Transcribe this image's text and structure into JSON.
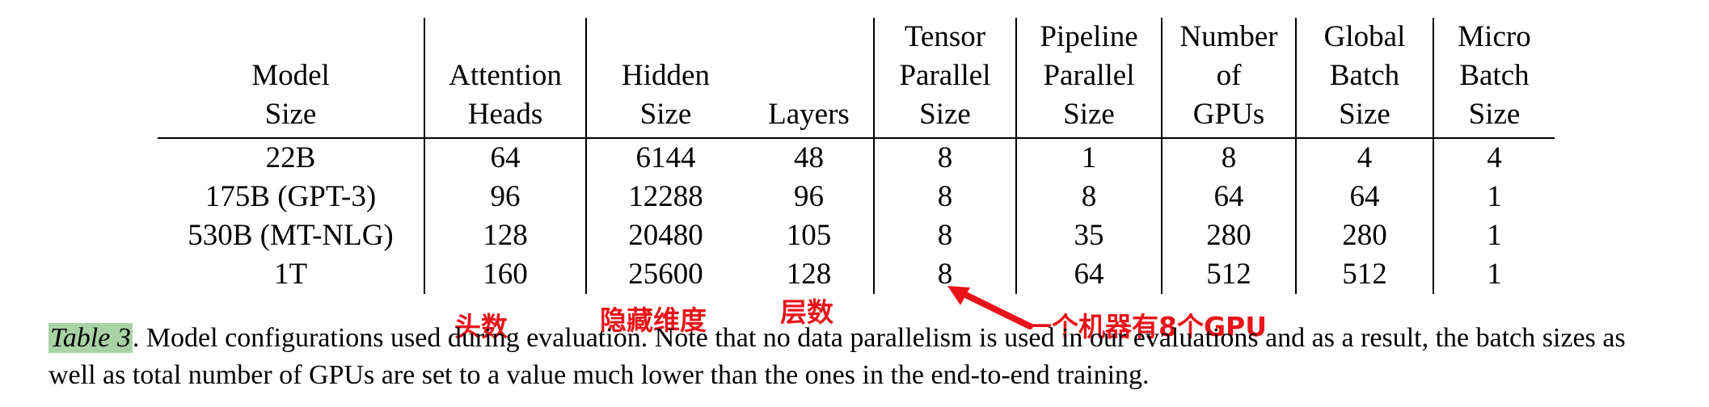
{
  "table": {
    "headers": [
      [
        "Model",
        "Size"
      ],
      [
        "Attention",
        "Heads"
      ],
      [
        "Hidden",
        "Size"
      ],
      [
        "Layers"
      ],
      [
        "Tensor",
        "Parallel",
        "Size"
      ],
      [
        "Pipeline",
        "Parallel",
        "Size"
      ],
      [
        "Number",
        "of",
        "GPUs"
      ],
      [
        "Global",
        "Batch",
        "Size"
      ],
      [
        "Micro",
        "Batch",
        "Size"
      ]
    ],
    "rows": [
      [
        "22B",
        "64",
        "6144",
        "48",
        "8",
        "1",
        "8",
        "4",
        "4"
      ],
      [
        "175B (GPT-3)",
        "96",
        "12288",
        "96",
        "8",
        "8",
        "64",
        "64",
        "1"
      ],
      [
        "530B (MT-NLG)",
        "128",
        "20480",
        "105",
        "8",
        "35",
        "280",
        "280",
        "1"
      ],
      [
        "1T",
        "160",
        "25600",
        "128",
        "8",
        "64",
        "512",
        "512",
        "1"
      ]
    ]
  },
  "annotations": {
    "heads": "头数",
    "hidden": "隐藏维度",
    "layers": "层数",
    "gpus_per_machine": "一个机器有8个GPU",
    "color": "#e8141a"
  },
  "caption": {
    "label": "Table 3",
    "text": ". Model configurations used during evaluation. Note that no data parallelism is used in our evaluations and as a result, the batch sizes as well as total number of GPUs are set to a value much lower than the ones in the end-to-end training."
  }
}
